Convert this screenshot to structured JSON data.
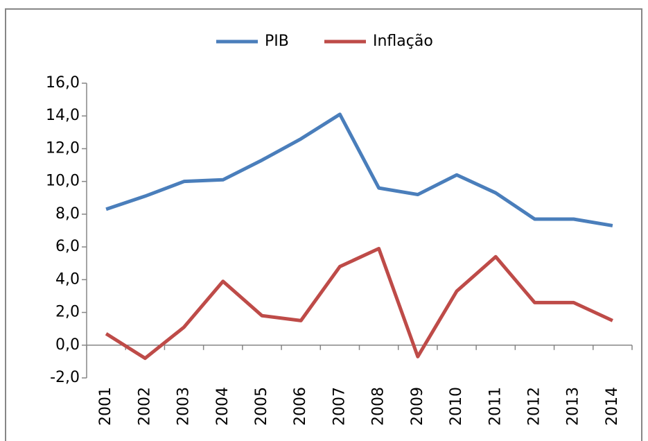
{
  "chart_data": {
    "type": "line",
    "categories": [
      "2001",
      "2002",
      "2003",
      "2004",
      "2005",
      "2006",
      "2007",
      "2008",
      "2009",
      "2010",
      "2011",
      "2012",
      "2013",
      "2014"
    ],
    "series": [
      {
        "name": "PIB",
        "color": "#4a7ebb",
        "values": [
          8.3,
          9.1,
          10.0,
          10.1,
          11.3,
          12.6,
          14.1,
          9.6,
          9.2,
          10.4,
          9.3,
          7.7,
          7.7,
          7.3
        ]
      },
      {
        "name": "Inflação",
        "color": "#be4b48",
        "values": [
          0.7,
          -0.8,
          1.1,
          3.9,
          1.8,
          1.5,
          4.8,
          5.9,
          -0.7,
          3.3,
          5.4,
          2.6,
          2.6,
          1.5
        ]
      }
    ],
    "ylim": [
      -2,
      16
    ],
    "yticks": [
      {
        "value": -2,
        "label": "-2,0"
      },
      {
        "value": 0,
        "label": "0,0"
      },
      {
        "value": 2,
        "label": "2,0"
      },
      {
        "value": 4,
        "label": "4,0"
      },
      {
        "value": 6,
        "label": "6,0"
      },
      {
        "value": 8,
        "label": "8,0"
      },
      {
        "value": 10,
        "label": "10,0"
      },
      {
        "value": 12,
        "label": "12,0"
      },
      {
        "value": 14,
        "label": "14,0"
      },
      {
        "value": 16,
        "label": "16,0"
      }
    ],
    "legend": "top",
    "grid": false
  }
}
